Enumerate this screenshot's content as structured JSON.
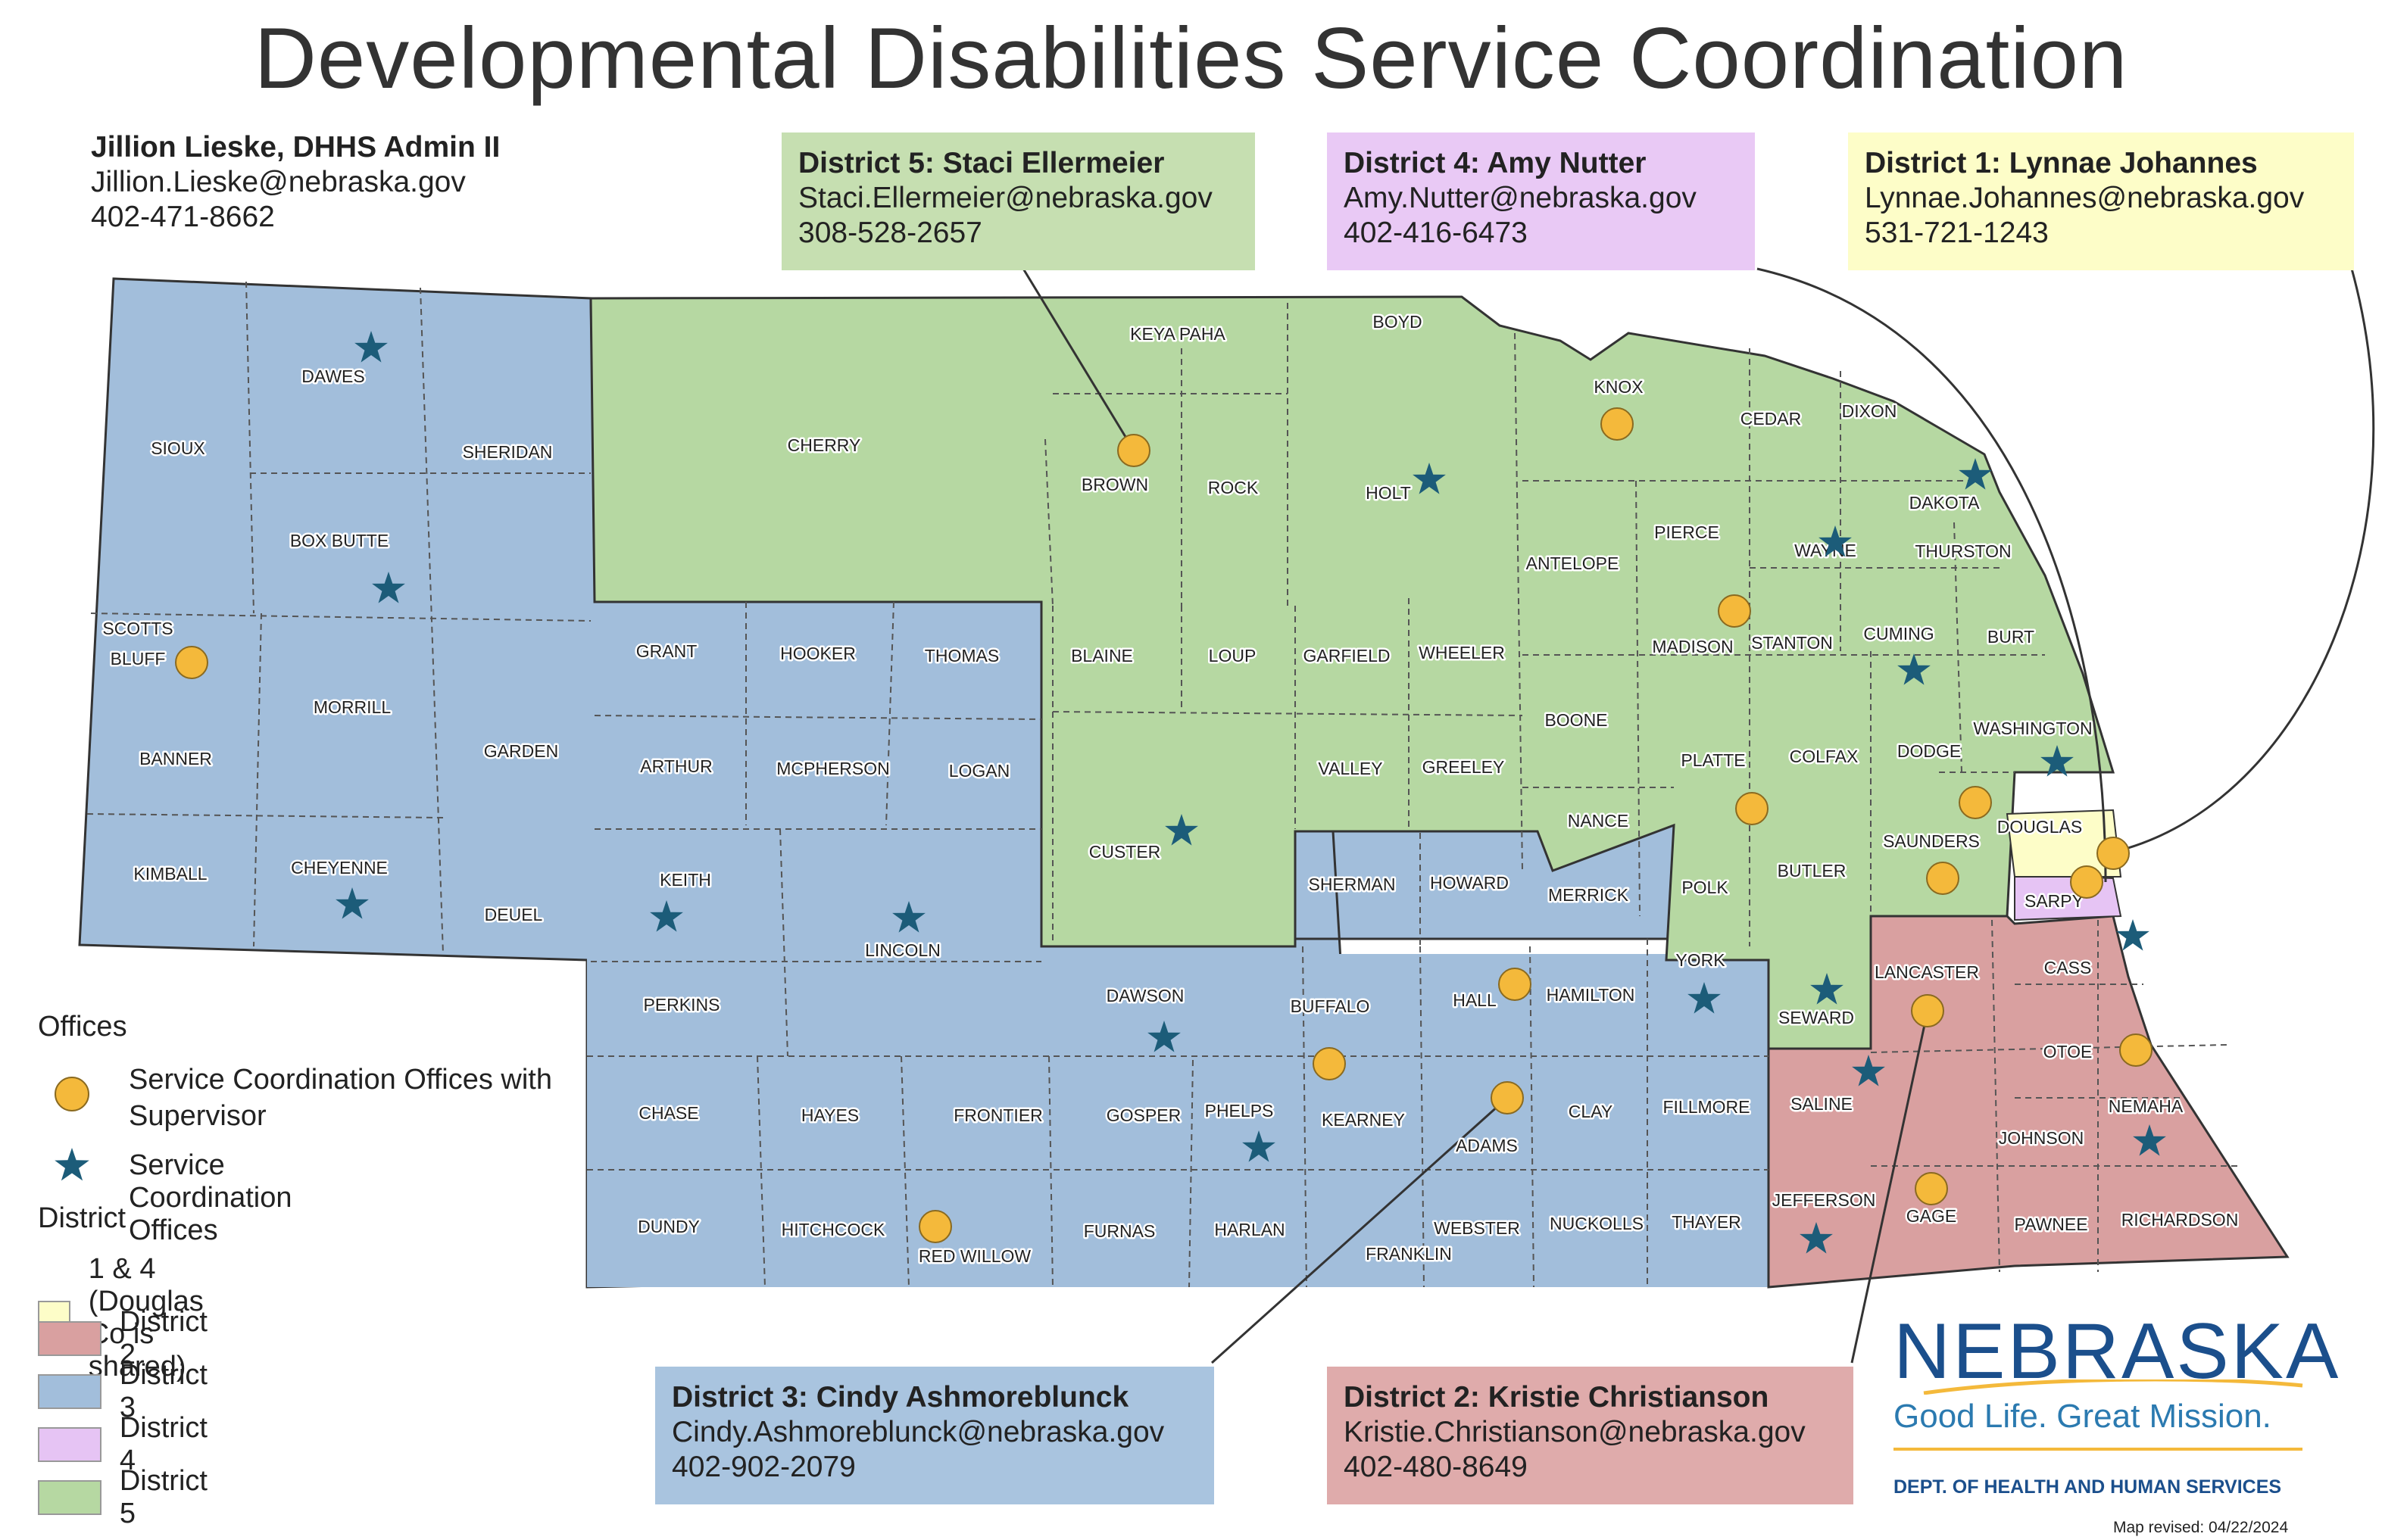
{
  "title": "Developmental Disabilities Service Coordination",
  "admin": {
    "name": "Jillion Lieske, DHHS Admin II",
    "email": "Jillion.Lieske@nebraska.gov",
    "phone": "402-471-8662"
  },
  "districts": {
    "d5": {
      "name": "District 5: Staci Ellermeier",
      "email": "Staci.Ellermeier@nebraska.gov",
      "phone": "308-528-2657"
    },
    "d4": {
      "name": "District 4: Amy Nutter",
      "email": "Amy.Nutter@nebraska.gov",
      "phone": "402-416-6473"
    },
    "d1": {
      "name": "District 1: Lynnae Johannes",
      "email": "Lynnae.Johannes@nebraska.gov",
      "phone": "531-721-1243"
    },
    "d3": {
      "name": "District 3: Cindy Ashmoreblunck",
      "email": "Cindy.Ashmoreblunck@nebraska.gov",
      "phone": "402-902-2079"
    },
    "d2": {
      "name": "District 2: Kristie Christianson",
      "email": "Kristie.Christianson@nebraska.gov",
      "phone": "402-480-8649"
    }
  },
  "colors": {
    "district1": "#fdfdc8",
    "district2": "#d9a0a0",
    "district3": "#a2bedb",
    "district4": "#e6c4f4",
    "district5": "#b6d8a2",
    "supervisor_office": "#f4b93b",
    "office_star": "#1c5c79"
  },
  "counties": [
    {
      "name": "SIOUX"
    },
    {
      "name": "DAWES"
    },
    {
      "name": "SHERIDAN"
    },
    {
      "name": "BOX BUTTE"
    },
    {
      "name": "SCOTTS"
    },
    {
      "name": "BLUFF"
    },
    {
      "name": "MORRILL"
    },
    {
      "name": "GARDEN"
    },
    {
      "name": "BANNER"
    },
    {
      "name": "KIMBALL"
    },
    {
      "name": "CHEYENNE"
    },
    {
      "name": "DEUEL"
    },
    {
      "name": "GRANT"
    },
    {
      "name": "HOOKER"
    },
    {
      "name": "THOMAS"
    },
    {
      "name": "ARTHUR"
    },
    {
      "name": "MCPHERSON"
    },
    {
      "name": "LOGAN"
    },
    {
      "name": "KEITH"
    },
    {
      "name": "LINCOLN"
    },
    {
      "name": "PERKINS"
    },
    {
      "name": "CHASE"
    },
    {
      "name": "HAYES"
    },
    {
      "name": "FRONTIER"
    },
    {
      "name": "DUNDY"
    },
    {
      "name": "HITCHCOCK"
    },
    {
      "name": "RED WILLOW"
    },
    {
      "name": "FURNAS"
    },
    {
      "name": "HARLAN"
    },
    {
      "name": "FRANKLIN"
    },
    {
      "name": "WEBSTER"
    },
    {
      "name": "NUCKOLLS"
    },
    {
      "name": "THAYER"
    },
    {
      "name": "GOSPER"
    },
    {
      "name": "PHELPS"
    },
    {
      "name": "KEARNEY"
    },
    {
      "name": "DAWSON"
    },
    {
      "name": "BUFFALO"
    },
    {
      "name": "HALL"
    },
    {
      "name": "ADAMS"
    },
    {
      "name": "CLAY"
    },
    {
      "name": "FILLMORE"
    },
    {
      "name": "SHERMAN"
    },
    {
      "name": "HOWARD"
    },
    {
      "name": "MERRICK"
    },
    {
      "name": "HAMILTON"
    },
    {
      "name": "YORK"
    },
    {
      "name": "CHERRY"
    },
    {
      "name": "KEYA PAHA"
    },
    {
      "name": "BOYD"
    },
    {
      "name": "BROWN"
    },
    {
      "name": "ROCK"
    },
    {
      "name": "HOLT"
    },
    {
      "name": "KNOX"
    },
    {
      "name": "CEDAR"
    },
    {
      "name": "DIXON"
    },
    {
      "name": "DAKOTA"
    },
    {
      "name": "THURSTON"
    },
    {
      "name": "WAYNE"
    },
    {
      "name": "PIERCE"
    },
    {
      "name": "ANTELOPE"
    },
    {
      "name": "MADISON"
    },
    {
      "name": "STANTON"
    },
    {
      "name": "CUMING"
    },
    {
      "name": "BURT"
    },
    {
      "name": "BLAINE"
    },
    {
      "name": "LOUP"
    },
    {
      "name": "GARFIELD"
    },
    {
      "name": "WHEELER"
    },
    {
      "name": "BOONE"
    },
    {
      "name": "PLATTE"
    },
    {
      "name": "COLFAX"
    },
    {
      "name": "DODGE"
    },
    {
      "name": "WASHINGTON"
    },
    {
      "name": "CUSTER"
    },
    {
      "name": "VALLEY"
    },
    {
      "name": "GREELEY"
    },
    {
      "name": "NANCE"
    },
    {
      "name": "POLK"
    },
    {
      "name": "BUTLER"
    },
    {
      "name": "SAUNDERS"
    },
    {
      "name": "DOUGLAS"
    },
    {
      "name": "SARPY"
    },
    {
      "name": "SEWARD"
    },
    {
      "name": "LANCASTER"
    },
    {
      "name": "CASS"
    },
    {
      "name": "OTOE"
    },
    {
      "name": "SALINE"
    },
    {
      "name": "JOHNSON"
    },
    {
      "name": "NEMAHA"
    },
    {
      "name": "JEFFERSON"
    },
    {
      "name": "GAGE"
    },
    {
      "name": "PAWNEE"
    },
    {
      "name": "RICHARDSON"
    }
  ],
  "legend": {
    "offices_title": "Offices",
    "supervisor_label": "Service Coordination Offices with Supervisor",
    "office_label": "Service Coordination Offices",
    "district_title": "District",
    "items": [
      {
        "label": "1 & 4 (Douglas Co is shared)"
      },
      {
        "label": "District 2"
      },
      {
        "label": "District 3"
      },
      {
        "label": "District 4"
      },
      {
        "label": "District 5"
      }
    ]
  },
  "logo": {
    "wordmark": "NEBRASKA",
    "tagline": "Good Life. Great Mission.",
    "department": "DEPT. OF HEALTH AND HUMAN SERVICES"
  },
  "revised": "Map revised: 04/22/2024"
}
